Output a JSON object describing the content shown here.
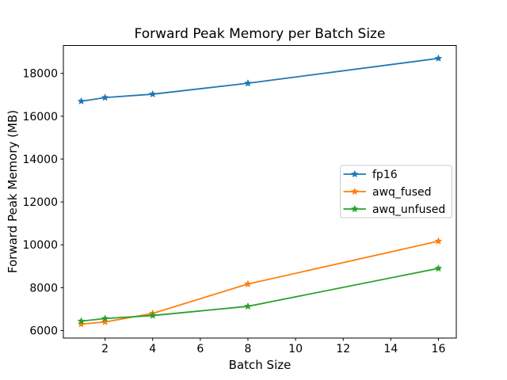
{
  "figure": {
    "title": "Forward Peak Memory per Batch Size",
    "xlabel": "Batch Size",
    "ylabel": "Forward Peak Memory (MB)",
    "background": "#ffffff"
  },
  "chart_data": {
    "type": "line",
    "title": "Forward Peak Memory per Batch Size",
    "xlabel": "Batch Size",
    "ylabel": "Forward Peak Memory (MB)",
    "x": [
      1,
      2,
      4,
      8,
      16
    ],
    "series": [
      {
        "name": "fp16",
        "color": "#1f77b4",
        "values": [
          16700,
          16870,
          17030,
          17540,
          18700
        ]
      },
      {
        "name": "awq_fused",
        "color": "#ff7f0e",
        "values": [
          6300,
          6400,
          6800,
          8170,
          10170
        ]
      },
      {
        "name": "awq_unfused",
        "color": "#2ca02c",
        "values": [
          6440,
          6560,
          6700,
          7130,
          8900
        ]
      }
    ],
    "marker": "star",
    "xlim": [
      0.25,
      16.75
    ],
    "ylim": [
      5650,
      19300
    ],
    "xticks": [
      2,
      4,
      6,
      8,
      10,
      12,
      14,
      16
    ],
    "yticks": [
      6000,
      8000,
      10000,
      12000,
      14000,
      16000,
      18000
    ],
    "grid": false,
    "legend_position": "center-right",
    "spine_color": "#000000",
    "text_color": "#000000",
    "legend_border_color": "#cccccc"
  }
}
